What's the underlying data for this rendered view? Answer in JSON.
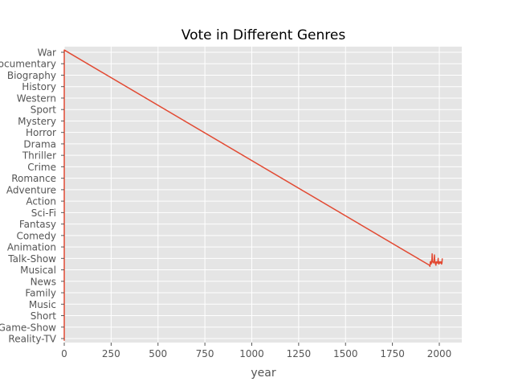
{
  "chart_data": {
    "type": "line",
    "title": "Vote in Different Genres",
    "xlabel": "year",
    "ylabel": "",
    "xlim": [
      0,
      2120
    ],
    "xticks": [
      "0",
      "250",
      "500",
      "750",
      "1000",
      "1250",
      "1500",
      "1750",
      "2000"
    ],
    "categories": [
      "Reality-TV",
      "Game-Show",
      "Short",
      "Music",
      "Family",
      "News",
      "Musical",
      "Talk-Show",
      "Animation",
      "Comedy",
      "Fantasy",
      "Sci-Fi",
      "Action",
      "Adventure",
      "Romance",
      "Crime",
      "Thriller",
      "Drama",
      "Horror",
      "Mystery",
      "Sport",
      "Western",
      "History",
      "Biography",
      "Documentary",
      "War"
    ],
    "grid": true,
    "colors": {
      "line": "#E24A33",
      "background": "#E5E5E5",
      "grid": "#FFFFFF",
      "text": "#555555"
    },
    "series": [
      {
        "x": [
          0,
          0,
          0,
          0,
          0,
          0,
          0,
          0,
          0,
          0,
          0,
          0,
          0,
          0,
          0,
          0,
          0,
          0,
          0,
          0,
          0,
          0,
          0,
          0,
          0,
          0,
          0,
          0,
          0,
          0,
          0,
          0,
          0,
          0,
          0,
          0,
          0,
          0,
          0,
          0,
          0,
          0,
          0,
          0,
          0,
          0,
          0,
          0,
          0,
          0,
          0,
          0,
          1948,
          1950,
          1952,
          1954,
          1956,
          1958,
          1960,
          1962,
          1964,
          1966,
          1968,
          1970,
          1972,
          1974,
          1976,
          1978,
          1980,
          1982,
          1984,
          1986,
          1988,
          1990,
          1992,
          1994,
          1996,
          1998,
          2000,
          2002,
          2004,
          2006,
          2008,
          2010,
          2012,
          2014,
          2016
        ],
        "y": [
          -0.2,
          0.2,
          0.8,
          1.2,
          1.8,
          2.2,
          2.8,
          3.2,
          3.8,
          4.2,
          4.8,
          5.2,
          5.8,
          6.2,
          6.8,
          7.2,
          7.8,
          8.2,
          8.8,
          9.2,
          9.8,
          10.2,
          10.8,
          11.2,
          11.8,
          12.2,
          12.8,
          13.2,
          13.8,
          14.2,
          14.8,
          15.2,
          15.8,
          16.2,
          16.8,
          17.2,
          17.8,
          18.2,
          18.8,
          19.2,
          19.8,
          20.2,
          20.8,
          21.2,
          21.8,
          22.2,
          22.8,
          23.2,
          23.8,
          24.2,
          24.8,
          25.2,
          6.4,
          6.3,
          6.7,
          6.6,
          6.5,
          6.8,
          6.6,
          7.4,
          6.7,
          6.7,
          6.7,
          6.6,
          6.7,
          7.3,
          6.8,
          6.6,
          6.5,
          6.4,
          6.7,
          6.6,
          6.7,
          6.6,
          6.6,
          7.0,
          6.6,
          6.5,
          6.7,
          6.6,
          6.6,
          6.7,
          6.6,
          6.7,
          6.5,
          6.6,
          7.0
        ]
      }
    ]
  }
}
